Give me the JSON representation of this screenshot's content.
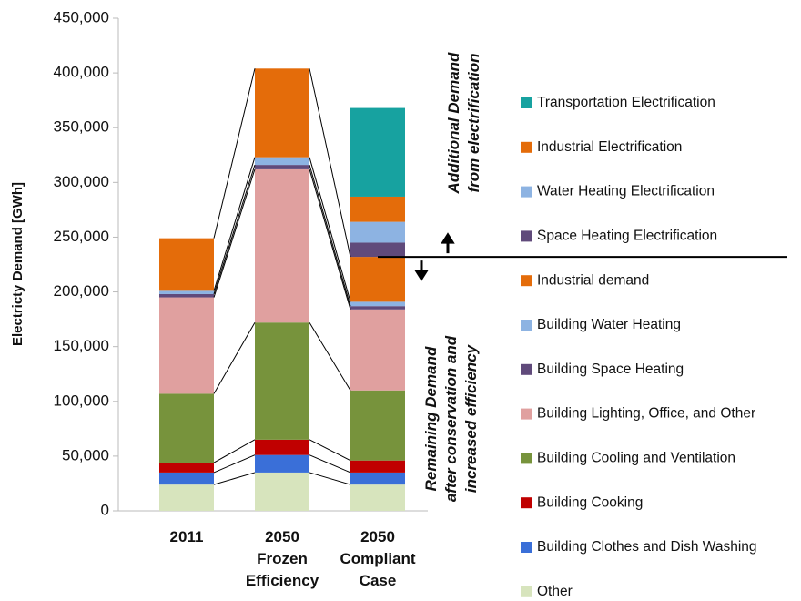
{
  "chart_data": {
    "type": "stacked-bar",
    "y_label": "Electricty Demand [GWh]",
    "categories": [
      "2011",
      "2050\nFrozen\nEfficiency",
      "2050\nCompliant\nCase"
    ],
    "ylim": [
      0,
      450000
    ],
    "yticks": [
      0,
      {
        "value": 50000,
        "label": "50,000"
      },
      {
        "value": 100000,
        "label": "100,000"
      },
      {
        "value": 150000,
        "label": "150,000"
      },
      {
        "value": 200000,
        "label": "200,000"
      },
      {
        "value": 250000,
        "label": "250,000"
      },
      {
        "value": 300000,
        "label": "300,000"
      },
      {
        "value": 350000,
        "label": "350,000"
      },
      {
        "value": 400000,
        "label": "400,000"
      },
      {
        "value": 450000,
        "label": "450,000"
      }
    ],
    "grid": false,
    "series": [
      {
        "name": "Other",
        "color": "#d7e4bd",
        "values": [
          24000,
          35000,
          24000
        ]
      },
      {
        "name": "Building Clothes and Dish Washing",
        "color": "#3a6fd8",
        "values": [
          11000,
          16000,
          11000
        ]
      },
      {
        "name": "Building Cooking",
        "color": "#c00000",
        "values": [
          9000,
          14000,
          11000
        ]
      },
      {
        "name": "Building Cooling and Ventilation",
        "color": "#77933c",
        "values": [
          63000,
          107000,
          64000
        ]
      },
      {
        "name": "Building Lighting, Office, and Other",
        "color": "#e0a09f",
        "values": [
          88000,
          140000,
          74000
        ]
      },
      {
        "name": "Building Space Heating",
        "color": "#604a7b",
        "values": [
          3000,
          4000,
          3000
        ]
      },
      {
        "name": "Building Water Heating",
        "color": "#8db3e2",
        "values": [
          3000,
          7000,
          4000
        ]
      },
      {
        "name": "Industrial demand",
        "color": "#e46c0a",
        "values": [
          48000,
          81000,
          41000
        ]
      },
      {
        "name": "Space Heating Electrification",
        "color": "#604a7b",
        "values": [
          null,
          null,
          13000
        ]
      },
      {
        "name": "Water Heating Electrification",
        "color": "#8db3e2",
        "values": [
          null,
          null,
          19000
        ]
      },
      {
        "name": "Industrial Electrification",
        "color": "#e46c0a",
        "values": [
          null,
          null,
          23000
        ]
      },
      {
        "name": "Transportation Electrification",
        "color": "#17a2a0",
        "values": [
          null,
          null,
          81000
        ]
      }
    ],
    "annotations": [
      "Additional Demand\nfrom electrification",
      "Remaining Demand\nafter conservation and\nincreased efficiency"
    ]
  }
}
